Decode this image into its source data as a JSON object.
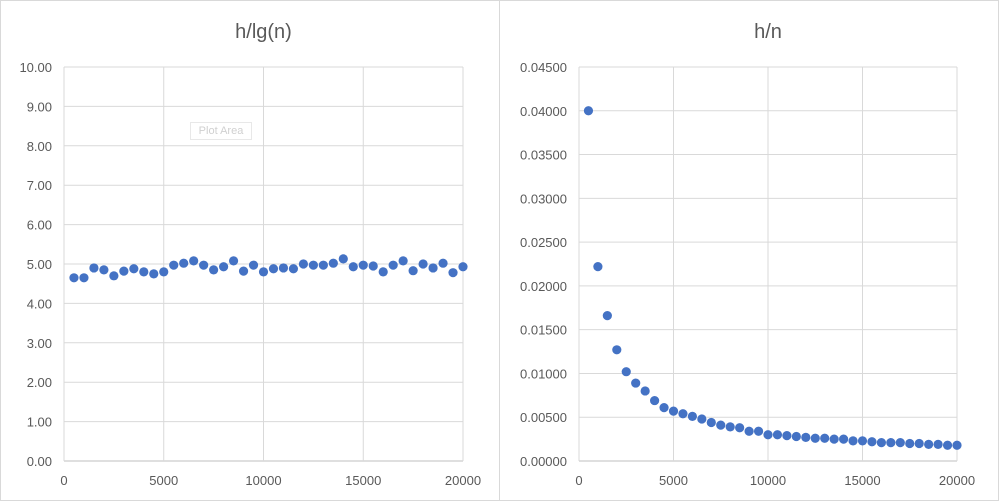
{
  "chart_data": [
    {
      "type": "scatter",
      "title": "h/lg(n)",
      "xlabel": "",
      "ylabel": "",
      "xlim": [
        0,
        20000
      ],
      "ylim": [
        0,
        10
      ],
      "xticks": [
        0,
        5000,
        10000,
        15000,
        20000
      ],
      "yticks": [
        0.0,
        1.0,
        2.0,
        3.0,
        4.0,
        5.0,
        6.0,
        7.0,
        8.0,
        9.0,
        10.0
      ],
      "ytick_decimals": 2,
      "grid": true,
      "legend": "none",
      "color": "#4472c4",
      "x": [
        500,
        1000,
        1500,
        2000,
        2500,
        3000,
        3500,
        4000,
        4500,
        5000,
        5500,
        6000,
        6500,
        7000,
        7500,
        8000,
        8500,
        9000,
        9500,
        10000,
        10500,
        11000,
        11500,
        12000,
        12500,
        13000,
        13500,
        14000,
        14500,
        15000,
        15500,
        16000,
        16500,
        17000,
        17500,
        18000,
        18500,
        19000,
        19500,
        20000
      ],
      "y": [
        4.65,
        4.65,
        4.9,
        4.85,
        4.7,
        4.82,
        4.88,
        4.8,
        4.75,
        4.8,
        4.97,
        5.02,
        5.08,
        4.97,
        4.85,
        4.93,
        5.08,
        4.82,
        4.97,
        4.8,
        4.88,
        4.9,
        4.88,
        5.0,
        4.97,
        4.97,
        5.02,
        5.13,
        4.93,
        4.97,
        4.95,
        4.8,
        4.97,
        5.08,
        4.83,
        5.0,
        4.9,
        5.02,
        4.78,
        4.93
      ],
      "annotation": "Plot Area"
    },
    {
      "type": "scatter",
      "title": "h/n",
      "xlabel": "",
      "ylabel": "",
      "xlim": [
        0,
        20000
      ],
      "ylim": [
        0,
        0.045
      ],
      "xticks": [
        0,
        5000,
        10000,
        15000,
        20000
      ],
      "yticks": [
        0,
        0.005,
        0.01,
        0.015,
        0.02,
        0.025,
        0.03,
        0.035,
        0.04,
        0.045
      ],
      "ytick_decimals": 5,
      "grid": true,
      "legend": "none",
      "color": "#4472c4",
      "x": [
        500,
        1000,
        1500,
        2000,
        2500,
        3000,
        3500,
        4000,
        4500,
        5000,
        5500,
        6000,
        6500,
        7000,
        7500,
        8000,
        8500,
        9000,
        9500,
        10000,
        10500,
        11000,
        11500,
        12000,
        12500,
        13000,
        13500,
        14000,
        14500,
        15000,
        15500,
        16000,
        16500,
        17000,
        17500,
        18000,
        18500,
        19000,
        19500,
        20000
      ],
      "y": [
        0.04,
        0.0222,
        0.0166,
        0.0127,
        0.0102,
        0.0089,
        0.008,
        0.0069,
        0.0061,
        0.0057,
        0.0054,
        0.0051,
        0.0048,
        0.0044,
        0.0041,
        0.0039,
        0.0038,
        0.0034,
        0.0034,
        0.003,
        0.003,
        0.0029,
        0.0028,
        0.0027,
        0.0026,
        0.0026,
        0.0025,
        0.0025,
        0.0023,
        0.0023,
        0.0022,
        0.0021,
        0.0021,
        0.0021,
        0.002,
        0.002,
        0.0019,
        0.0019,
        0.0018,
        0.0018
      ]
    }
  ]
}
